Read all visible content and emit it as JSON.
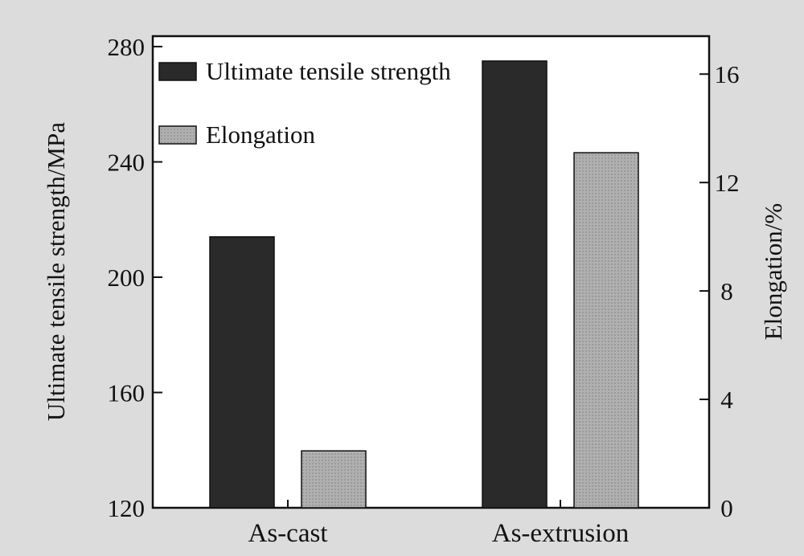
{
  "chart_data": {
    "type": "bar",
    "categories": [
      "As-cast",
      "As-extrusion"
    ],
    "series": [
      {
        "name": "Ultimate tensile strength",
        "axis": "left",
        "values": [
          214,
          275
        ],
        "color": "#2a2a2a"
      },
      {
        "name": "Elongation",
        "axis": "right",
        "values": [
          2.1,
          13.1
        ],
        "color": "#a8a8a8"
      }
    ],
    "ylabel_left": "Ultimate tensile strength/MPa",
    "ylabel_right": "Elongation/%",
    "ylim_left": [
      120,
      280
    ],
    "yticks_left": [
      120,
      160,
      200,
      240,
      280
    ],
    "ylim_right": [
      0,
      17.4
    ],
    "yticks_right": [
      0,
      4,
      8,
      12,
      16
    ],
    "legend_position": "top-left",
    "grid": false
  }
}
